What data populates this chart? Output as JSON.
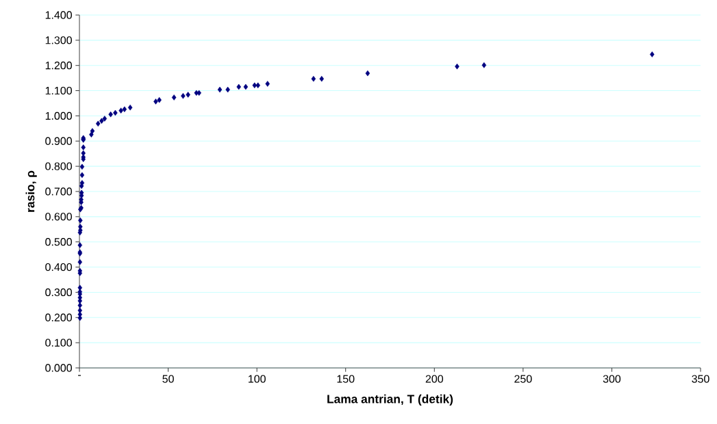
{
  "chart_data": {
    "type": "scatter",
    "xlabel": "Lama antrian, T (detik)",
    "ylabel": "rasio, ρ",
    "x": [
      0.3,
      0.3,
      0.3,
      0.3,
      0.3,
      0.3,
      0.3,
      0.3,
      0.3,
      0.3,
      0.3,
      0.3,
      0.3,
      0.3,
      0.3,
      0.3,
      0.5,
      0.5,
      0.5,
      0.5,
      1.0,
      1.0,
      1.0,
      1.2,
      1.2,
      1.2,
      1.5,
      1.5,
      1.5,
      2.2,
      2.2,
      2.2,
      2.2,
      2.2,
      2.2,
      2.2,
      6.7,
      7.3,
      10.5,
      12.5,
      14.2,
      17.6,
      20.2,
      23.4,
      25.4,
      28.6,
      43,
      45,
      53.3,
      58.4,
      61.2,
      65.9,
      67.4,
      79.1,
      83.6,
      89.8,
      93.7,
      98.7,
      100.6,
      106,
      131.9,
      136.5,
      162.4,
      212.8,
      228,
      322.7
    ],
    "values": [
      0.198,
      0.212,
      0.228,
      0.248,
      0.266,
      0.279,
      0.293,
      0.302,
      0.318,
      0.376,
      0.385,
      0.42,
      0.454,
      0.459,
      0.487,
      0.537,
      0.546,
      0.56,
      0.585,
      0.629,
      0.635,
      0.657,
      0.668,
      0.684,
      0.695,
      0.722,
      0.734,
      0.765,
      0.798,
      0.828,
      0.836,
      0.852,
      0.875,
      0.908,
      0.912,
      0.905,
      0.926,
      0.94,
      0.969,
      0.98,
      0.989,
      1.006,
      1.012,
      1.021,
      1.026,
      1.033,
      1.057,
      1.063,
      1.073,
      1.079,
      1.084,
      1.091,
      1.091,
      1.104,
      1.104,
      1.115,
      1.115,
      1.121,
      1.121,
      1.127,
      1.147,
      1.147,
      1.169,
      1.196,
      1.201,
      1.244
    ],
    "color": "#000080",
    "marker": "diamond",
    "grid": "y",
    "xlim": [
      0,
      350
    ],
    "xticks": [
      {
        "value": 0,
        "label": "-"
      },
      50,
      100,
      150,
      200,
      250,
      300,
      350
    ],
    "ylim": [
      0,
      1.4
    ],
    "yticks": [
      {
        "value": 0,
        "label": "0.000"
      },
      {
        "value": 0.1,
        "label": "0.100"
      },
      {
        "value": 0.2,
        "label": "0.200"
      },
      {
        "value": 0.3,
        "label": "0.300"
      },
      {
        "value": 0.4,
        "label": "0.400"
      },
      {
        "value": 0.5,
        "label": "0.500"
      },
      {
        "value": 0.6,
        "label": "0.600"
      },
      {
        "value": 0.7,
        "label": "0.700"
      },
      {
        "value": 0.8,
        "label": "0.800"
      },
      {
        "value": 0.9,
        "label": "0.900"
      },
      {
        "value": 1.0,
        "label": "1.000"
      },
      {
        "value": 1.1,
        "label": "1.100"
      },
      {
        "value": 1.2,
        "label": "1.200"
      },
      {
        "value": 1.3,
        "label": "1.300"
      },
      {
        "value": 1.4,
        "label": "1.400"
      }
    ]
  }
}
